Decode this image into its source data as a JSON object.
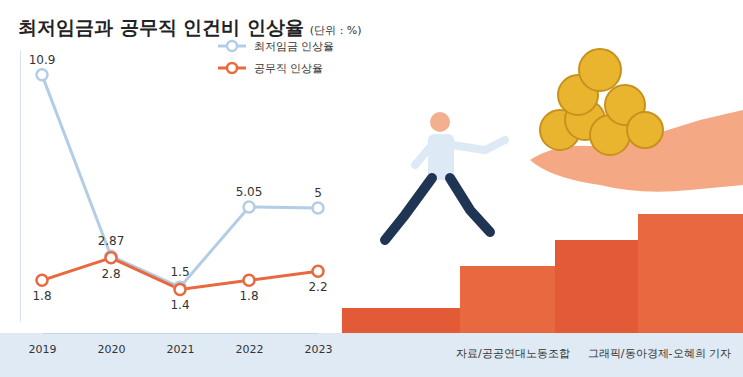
{
  "chart_data": {
    "type": "line",
    "title": "최저임금과 공무직 인건비 인상율",
    "subtitle": "(단위 : %)",
    "categories": [
      "2019",
      "2020",
      "2021",
      "2022",
      "2023"
    ],
    "series": [
      {
        "name": "최저임금 인상율",
        "color": "#b3cde6",
        "marker": "circle",
        "values": [
          10.9,
          2.87,
          1.5,
          5.05,
          5
        ]
      },
      {
        "name": "공무직 인상율",
        "color": "#e9693e",
        "marker": "circle",
        "values": [
          1.8,
          2.8,
          1.4,
          1.8,
          2.2
        ]
      }
    ],
    "ylim": [
      0,
      12
    ],
    "tick_labels": "x",
    "grid": false,
    "legend": "top-right",
    "data_labels": true,
    "source": "자료/공공연대노동조합",
    "credit": "그래픽/동아경제-오혜희 기자"
  }
}
